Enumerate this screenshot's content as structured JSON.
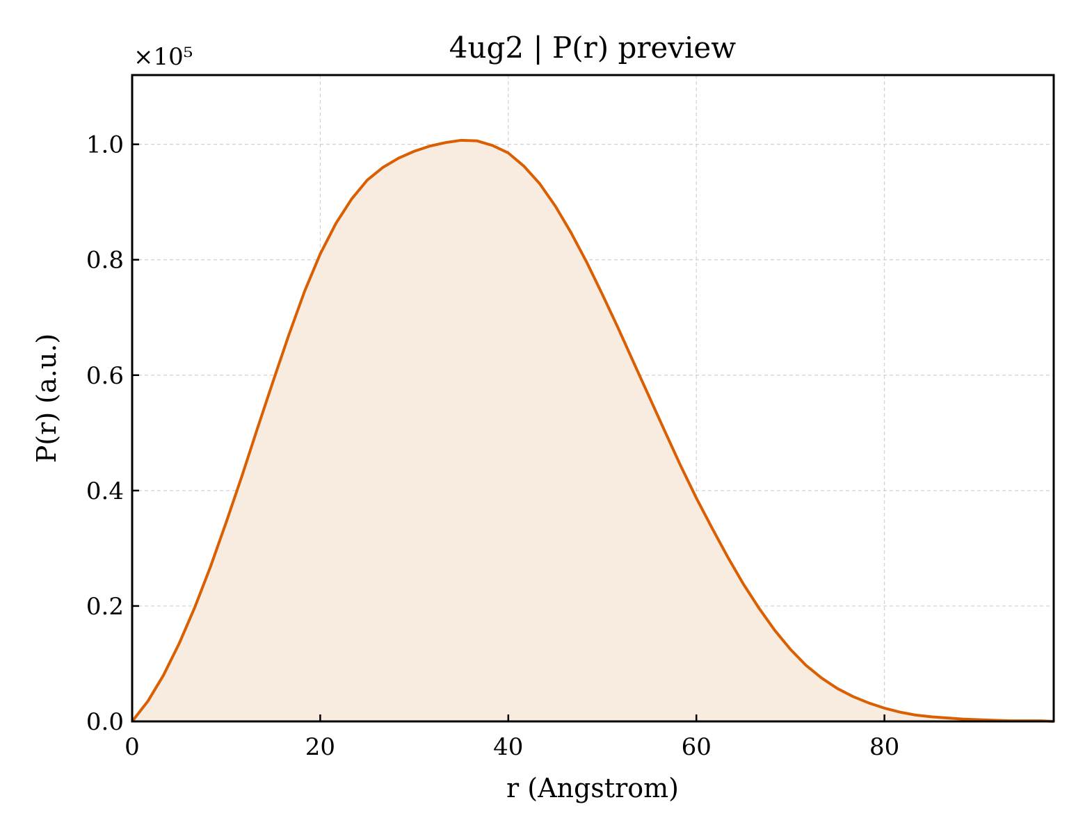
{
  "chart_data": {
    "type": "area",
    "title": "4ug2 | P(r) preview",
    "xlabel": "r (Angstrom)",
    "ylabel": "P(r) (a.u.)",
    "y_multiplier_label": "×10⁵",
    "y_scale_factor": 100000,
    "xlim": [
      0,
      98
    ],
    "ylim": [
      0,
      1.12
    ],
    "x_ticks": [
      0,
      20,
      40,
      60,
      80
    ],
    "x_tick_labels": [
      "0",
      "20",
      "40",
      "60",
      "80"
    ],
    "y_ticks": [
      0.0,
      0.2,
      0.4,
      0.6,
      0.8,
      1.0
    ],
    "y_tick_labels": [
      "0.0",
      "0.2",
      "0.4",
      "0.6",
      "0.8",
      "1.0"
    ],
    "grid": true,
    "line_color": "#d95f02",
    "fill_color": "#f8ebe0",
    "series": [
      {
        "x": [
          0,
          1.67,
          3.33,
          5.0,
          6.67,
          8.33,
          10.0,
          11.67,
          13.33,
          15.0,
          16.67,
          18.33,
          20.0,
          21.67,
          23.33,
          25.0,
          26.67,
          28.33,
          30.0,
          31.67,
          33.33,
          35.0,
          36.67,
          38.33,
          40.0,
          41.67,
          43.33,
          45.0,
          46.67,
          48.33,
          50.0,
          51.67,
          53.33,
          55.0,
          56.67,
          58.33,
          60.0,
          61.67,
          63.33,
          65.0,
          66.67,
          68.33,
          70.0,
          71.67,
          73.33,
          75.0,
          76.67,
          78.33,
          80.0,
          81.67,
          83.33,
          85.0,
          86.67,
          88.33,
          90.0,
          91.67,
          93.33,
          95.0,
          96.67,
          98.0
        ],
        "y": [
          0.0,
          0.035,
          0.08,
          0.135,
          0.198,
          0.268,
          0.345,
          0.425,
          0.508,
          0.59,
          0.67,
          0.745,
          0.81,
          0.863,
          0.905,
          0.938,
          0.96,
          0.976,
          0.988,
          0.997,
          1.003,
          1.007,
          1.006,
          0.998,
          0.985,
          0.962,
          0.932,
          0.893,
          0.847,
          0.796,
          0.74,
          0.682,
          0.622,
          0.562,
          0.502,
          0.443,
          0.387,
          0.335,
          0.285,
          0.238,
          0.196,
          0.158,
          0.125,
          0.097,
          0.075,
          0.057,
          0.043,
          0.032,
          0.023,
          0.016,
          0.011,
          0.008,
          0.006,
          0.004,
          0.003,
          0.002,
          0.001,
          0.001,
          0.001,
          0.0
        ]
      }
    ]
  }
}
